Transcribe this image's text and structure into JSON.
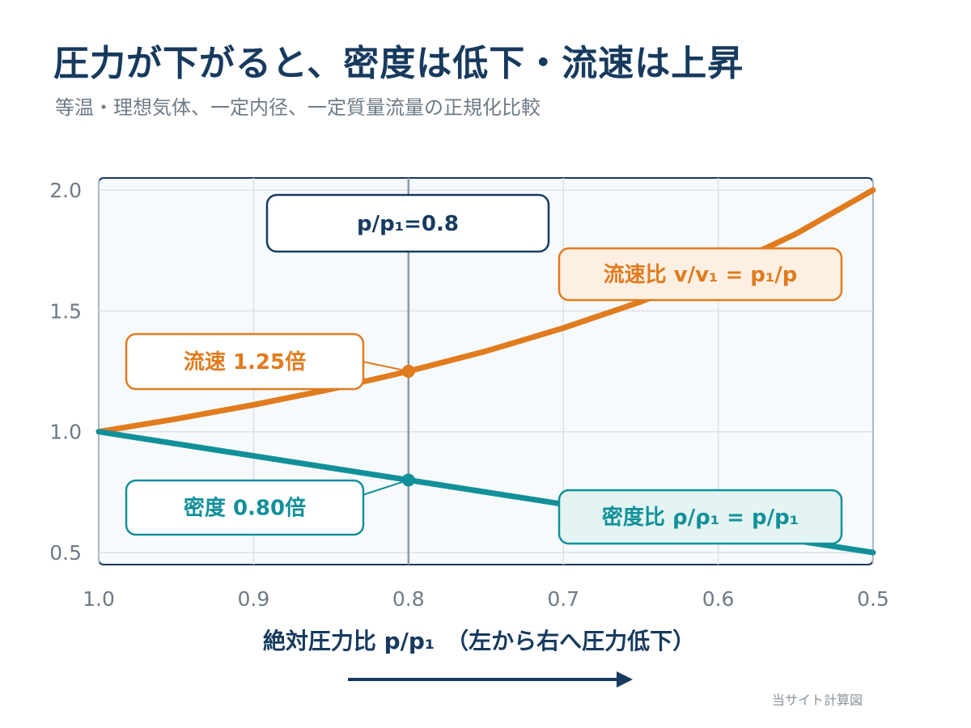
{
  "title": "圧力が下がると、密度は低下・流速は上昇",
  "subtitle": "等温・理想気体、一定内径、一定質量流量の正規化比較",
  "credit": "当サイト計算図",
  "chart_data": {
    "type": "line",
    "xlabel": "絶対圧力比  p/p₁　（左から右へ圧力低下）",
    "x_reversed": true,
    "xlim": [
      1.0,
      0.5
    ],
    "ylim": [
      0.45,
      2.05
    ],
    "x_ticks": [
      "1.0",
      "0.9",
      "0.8",
      "0.7",
      "0.6",
      "0.5"
    ],
    "y_ticks": [
      "0.5",
      "1.0",
      "1.5",
      "2.0"
    ],
    "grid": true,
    "series": [
      {
        "name": "流速比  v/v₁ = p₁/p",
        "color": "#e07b1e",
        "x": [
          1.0,
          0.95,
          0.9,
          0.85,
          0.8,
          0.75,
          0.7,
          0.65,
          0.6,
          0.55,
          0.5
        ],
        "y": [
          1.0,
          1.053,
          1.111,
          1.176,
          1.25,
          1.333,
          1.429,
          1.538,
          1.667,
          1.818,
          2.0
        ]
      },
      {
        "name": "密度比  ρ/ρ₁ = p/p₁",
        "color": "#12909a",
        "x": [
          1.0,
          0.9,
          0.8,
          0.7,
          0.6,
          0.5
        ],
        "y": [
          1.0,
          0.9,
          0.8,
          0.7,
          0.6,
          0.5
        ]
      }
    ],
    "marker_line": {
      "x": 0.8,
      "label": "p/p₁=0.8"
    },
    "annotations": [
      {
        "label": "流速 1.25倍",
        "x": 0.8,
        "y": 1.25,
        "color": "#e07b1e"
      },
      {
        "label": "密度 0.80倍",
        "x": 0.8,
        "y": 0.8,
        "color": "#12909a"
      }
    ]
  }
}
